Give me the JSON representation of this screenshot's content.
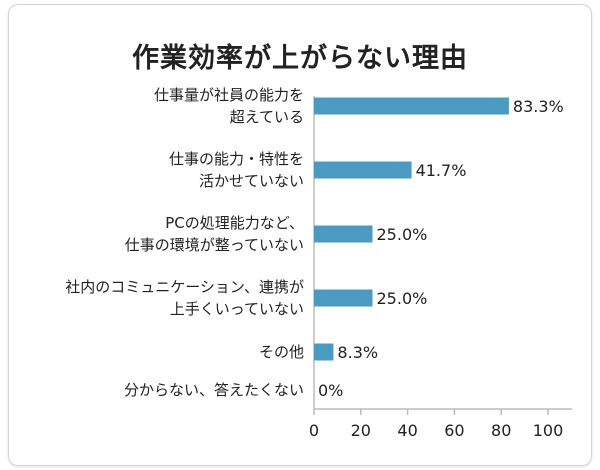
{
  "chart_data": {
    "type": "bar",
    "orientation": "horizontal",
    "title": "作業効率が上がらない理由",
    "categories": [
      [
        "仕事量が社員の能力を",
        "超えている"
      ],
      [
        "仕事の能力・特性を",
        "活かせていない"
      ],
      [
        "PCの処理能力など、",
        "仕事の環境が整っていない"
      ],
      [
        "社内のコミュニケーション、連携が",
        "上手くいっていない"
      ],
      [
        "その他"
      ],
      [
        "分からない、答えたくない"
      ]
    ],
    "values": [
      83.3,
      41.7,
      25.0,
      25.0,
      8.3,
      0
    ],
    "value_labels": [
      "83.3%",
      "41.7%",
      "25.0%",
      "25.0%",
      "8.3%",
      "0%"
    ],
    "xlim": [
      0,
      100
    ],
    "xticks": [
      0,
      20,
      40,
      60,
      80,
      100
    ],
    "bar_color": "#4a9bbf",
    "axis_color": "#bbbbbb",
    "grid": false,
    "legend": "none"
  }
}
